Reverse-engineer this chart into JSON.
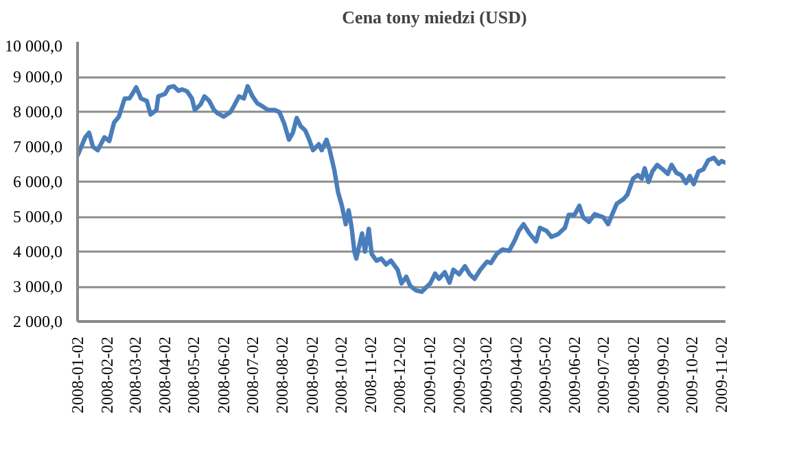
{
  "chart_data": {
    "type": "line",
    "legend": "top",
    "grid": "y",
    "line_style": "solid",
    "marker": "none",
    "xlim": [
      "2008-01-02",
      "2009-11-06"
    ],
    "xticks": [
      "2008-01-02",
      "2008-02-02",
      "2008-03-02",
      "2008-04-02",
      "2008-05-02",
      "2008-06-02",
      "2008-07-02",
      "2008-08-02",
      "2008-09-02",
      "2008-10-02",
      "2008-11-02",
      "2008-12-02",
      "2009-01-02",
      "2009-02-02",
      "2009-03-02",
      "2009-04-02",
      "2009-05-02",
      "2009-06-02",
      "2009-07-02",
      "2009-08-02",
      "2009-09-02",
      "2009-10-02",
      "2009-11-02"
    ],
    "ylim": [
      2000,
      10000
    ],
    "yticks": [
      {
        "value": 2000,
        "label": "2 000,0"
      },
      {
        "value": 3000,
        "label": "3 000,0"
      },
      {
        "value": 4000,
        "label": "4 000,0"
      },
      {
        "value": 5000,
        "label": "5 000,0"
      },
      {
        "value": 6000,
        "label": "6 000,0"
      },
      {
        "value": 7000,
        "label": "7 000,0"
      },
      {
        "value": 8000,
        "label": "8 000,0"
      },
      {
        "value": 9000,
        "label": "9 000,0"
      },
      {
        "value": 10000,
        "label": "10 000,0"
      }
    ],
    "x": [
      "2008-01-02",
      "2008-01-05",
      "2008-01-10",
      "2008-01-14",
      "2008-01-18",
      "2008-01-23",
      "2008-01-30",
      "2008-02-04",
      "2008-02-09",
      "2008-02-14",
      "2008-02-20",
      "2008-02-25",
      "2008-02-28",
      "2008-03-03",
      "2008-03-08",
      "2008-03-14",
      "2008-03-18",
      "2008-03-24",
      "2008-03-26",
      "2008-04-02",
      "2008-04-06",
      "2008-04-11",
      "2008-04-16",
      "2008-04-20",
      "2008-04-25",
      "2008-04-30",
      "2008-05-03",
      "2008-05-09",
      "2008-05-13",
      "2008-05-18",
      "2008-05-23",
      "2008-05-27",
      "2008-06-02",
      "2008-06-09",
      "2008-06-13",
      "2008-06-18",
      "2008-06-23",
      "2008-06-27",
      "2008-07-02",
      "2008-07-07",
      "2008-07-11",
      "2008-07-18",
      "2008-07-25",
      "2008-07-30",
      "2008-08-04",
      "2008-08-09",
      "2008-08-13",
      "2008-08-17",
      "2008-08-21",
      "2008-08-26",
      "2008-08-30",
      "2008-09-03",
      "2008-09-09",
      "2008-09-12",
      "2008-09-17",
      "2008-09-20",
      "2008-09-25",
      "2008-09-29",
      "2008-10-03",
      "2008-10-07",
      "2008-10-10",
      "2008-10-13",
      "2008-10-16",
      "2008-10-18",
      "2008-10-24",
      "2008-10-27",
      "2008-10-31",
      "2008-11-03",
      "2008-11-08",
      "2008-11-13",
      "2008-11-18",
      "2008-11-23",
      "2008-11-30",
      "2008-12-04",
      "2008-12-09",
      "2008-12-13",
      "2008-12-19",
      "2008-12-25",
      "2009-01-03",
      "2009-01-08",
      "2009-01-12",
      "2009-01-18",
      "2009-01-23",
      "2009-01-27",
      "2009-02-02",
      "2009-02-08",
      "2009-02-13",
      "2009-02-18",
      "2009-02-24",
      "2009-03-03",
      "2009-03-07",
      "2009-03-13",
      "2009-03-19",
      "2009-03-26",
      "2009-04-01",
      "2009-04-05",
      "2009-04-10",
      "2009-04-16",
      "2009-04-23",
      "2009-04-27",
      "2009-05-04",
      "2009-05-09",
      "2009-05-16",
      "2009-05-23",
      "2009-05-27",
      "2009-06-02",
      "2009-06-07",
      "2009-06-11",
      "2009-06-17",
      "2009-06-23",
      "2009-07-02",
      "2009-07-07",
      "2009-07-11",
      "2009-07-16",
      "2009-07-23",
      "2009-07-27",
      "2009-08-02",
      "2009-08-07",
      "2009-08-11",
      "2009-08-14",
      "2009-08-18",
      "2009-08-22",
      "2009-08-27",
      "2009-09-02",
      "2009-09-07",
      "2009-09-11",
      "2009-09-16",
      "2009-09-21",
      "2009-09-26",
      "2009-09-30",
      "2009-10-04",
      "2009-10-09",
      "2009-10-14",
      "2009-10-19",
      "2009-10-25",
      "2009-10-30",
      "2009-11-02",
      "2009-11-05"
    ],
    "series": [
      {
        "name": "Cena tony miedzi (USD)",
        "color": "#4a7ebb",
        "values": [
          6750,
          6940,
          7270,
          7400,
          7000,
          6900,
          7270,
          7160,
          7690,
          7860,
          8380,
          8380,
          8510,
          8700,
          8380,
          8310,
          7920,
          8050,
          8440,
          8510,
          8700,
          8730,
          8600,
          8640,
          8580,
          8380,
          8050,
          8210,
          8440,
          8310,
          8050,
          7950,
          7860,
          7990,
          8180,
          8440,
          8380,
          8730,
          8440,
          8240,
          8180,
          8050,
          8050,
          7990,
          7660,
          7200,
          7400,
          7820,
          7590,
          7460,
          7200,
          6900,
          7070,
          6900,
          7200,
          6940,
          6350,
          5700,
          5310,
          4780,
          5180,
          4720,
          4000,
          3800,
          4520,
          4000,
          4650,
          3930,
          3740,
          3800,
          3630,
          3740,
          3480,
          3090,
          3280,
          3020,
          2890,
          2850,
          3090,
          3370,
          3220,
          3410,
          3110,
          3480,
          3350,
          3580,
          3350,
          3220,
          3480,
          3710,
          3670,
          3930,
          4060,
          4020,
          4330,
          4590,
          4780,
          4520,
          4290,
          4680,
          4590,
          4420,
          4500,
          4680,
          5050,
          5050,
          5310,
          4980,
          4850,
          5070,
          4980,
          4780,
          5050,
          5370,
          5500,
          5630,
          6090,
          6190,
          6090,
          6380,
          5990,
          6290,
          6480,
          6350,
          6220,
          6480,
          6250,
          6190,
          5960,
          6160,
          5930,
          6290,
          6350,
          6610,
          6680,
          6510,
          6590,
          6550
        ]
      }
    ]
  }
}
